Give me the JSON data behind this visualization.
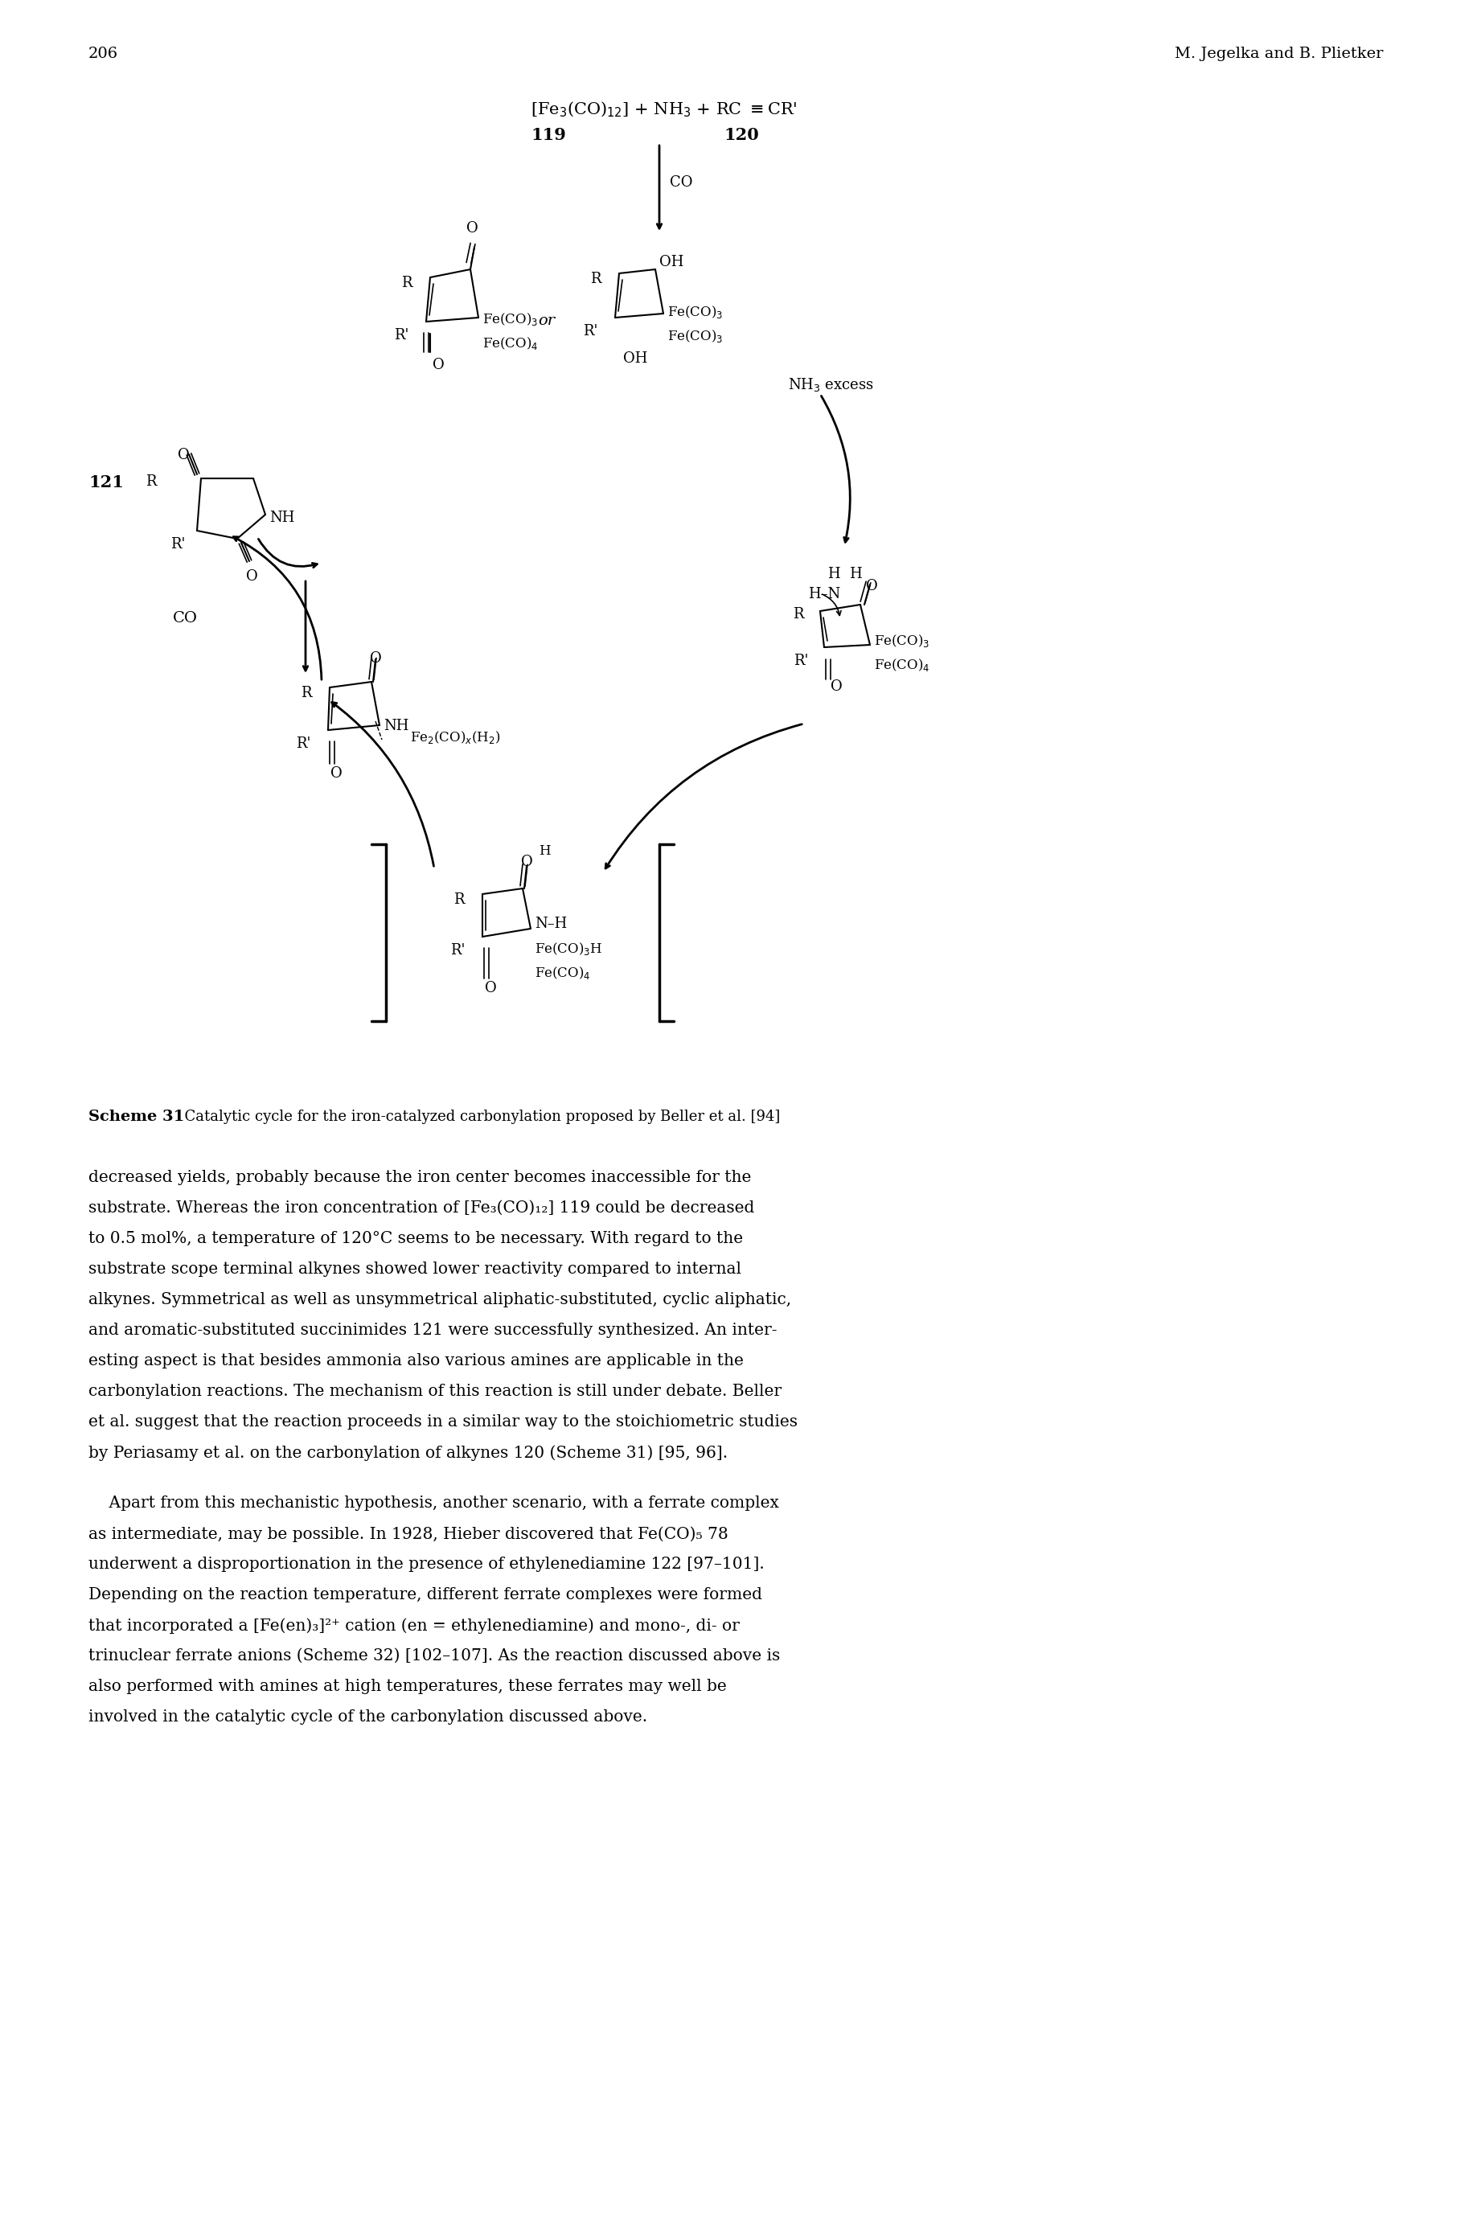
{
  "page_number": "206",
  "header_right": "M. Jegelka and B. Plietker",
  "scheme_label": "Scheme 31",
  "scheme_caption": "Catalytic cycle for the iron-catalyzed carbonylation proposed by Beller et al. [94]",
  "background_color": "#ffffff",
  "text_color": "#000000",
  "p1_lines": [
    "decreased yields, probably because the iron center becomes inaccessible for the",
    "substrate. Whereas the iron concentration of [Fe₃(CO)₁₂] 119 could be decreased",
    "to 0.5 mol%, a temperature of 120°C seems to be necessary. With regard to the",
    "substrate scope terminal alkynes showed lower reactivity compared to internal",
    "alkynes. Symmetrical as well as unsymmetrical aliphatic-substituted, cyclic aliphatic,",
    "and aromatic-substituted succinimides 121 were successfully synthesized. An inter-",
    "esting aspect is that besides ammonia also various amines are applicable in the",
    "carbonylation reactions. The mechanism of this reaction is still under debate. Beller",
    "et al. suggest that the reaction proceeds in a similar way to the stoichiometric studies",
    "by Periasamy et al. on the carbonylation of alkynes 120 (Scheme 31) [95, 96]."
  ],
  "p2_lines": [
    "    Apart from this mechanistic hypothesis, another scenario, with a ferrate complex",
    "as intermediate, may be possible. In 1928, Hieber discovered that Fe(CO)₅ 78",
    "underwent a disproportionation in the presence of ethylenediamine 122 [97–101].",
    "Depending on the reaction temperature, different ferrate complexes were formed",
    "that incorporated a [Fe(en)₃]²⁺ cation (en = ethylenediamine) and mono-, di- or",
    "trinuclear ferrate anions (Scheme 32) [102–107]. As the reaction discussed above is",
    "also performed with amines at high temperatures, these ferrates may well be",
    "involved in the catalytic cycle of the carbonylation discussed above."
  ]
}
